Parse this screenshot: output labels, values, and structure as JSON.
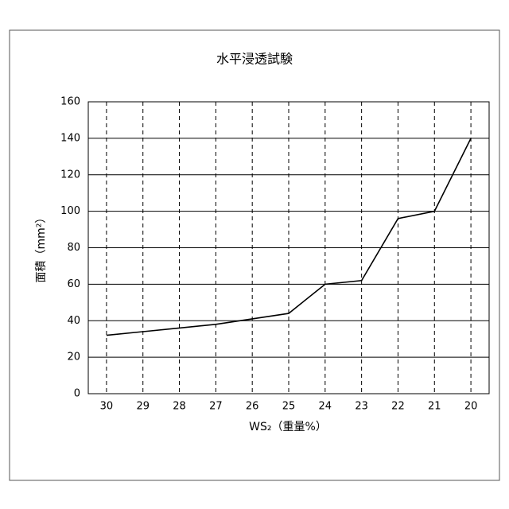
{
  "chart_data": {
    "type": "line",
    "title": "水平浸透試験",
    "x_label": "WS₂（重量%）",
    "y_label": "面積（mm²）",
    "categories": [
      "30",
      "29",
      "28",
      "27",
      "26",
      "25",
      "24",
      "23",
      "22",
      "21",
      "20"
    ],
    "values": [
      32,
      34,
      36,
      38,
      41,
      44,
      60,
      62,
      96,
      100,
      140
    ],
    "color": "#000000",
    "ylim": [
      0,
      160
    ],
    "yticks": [
      0,
      20,
      40,
      60,
      80,
      100,
      120,
      140,
      160
    ],
    "grid": true
  }
}
